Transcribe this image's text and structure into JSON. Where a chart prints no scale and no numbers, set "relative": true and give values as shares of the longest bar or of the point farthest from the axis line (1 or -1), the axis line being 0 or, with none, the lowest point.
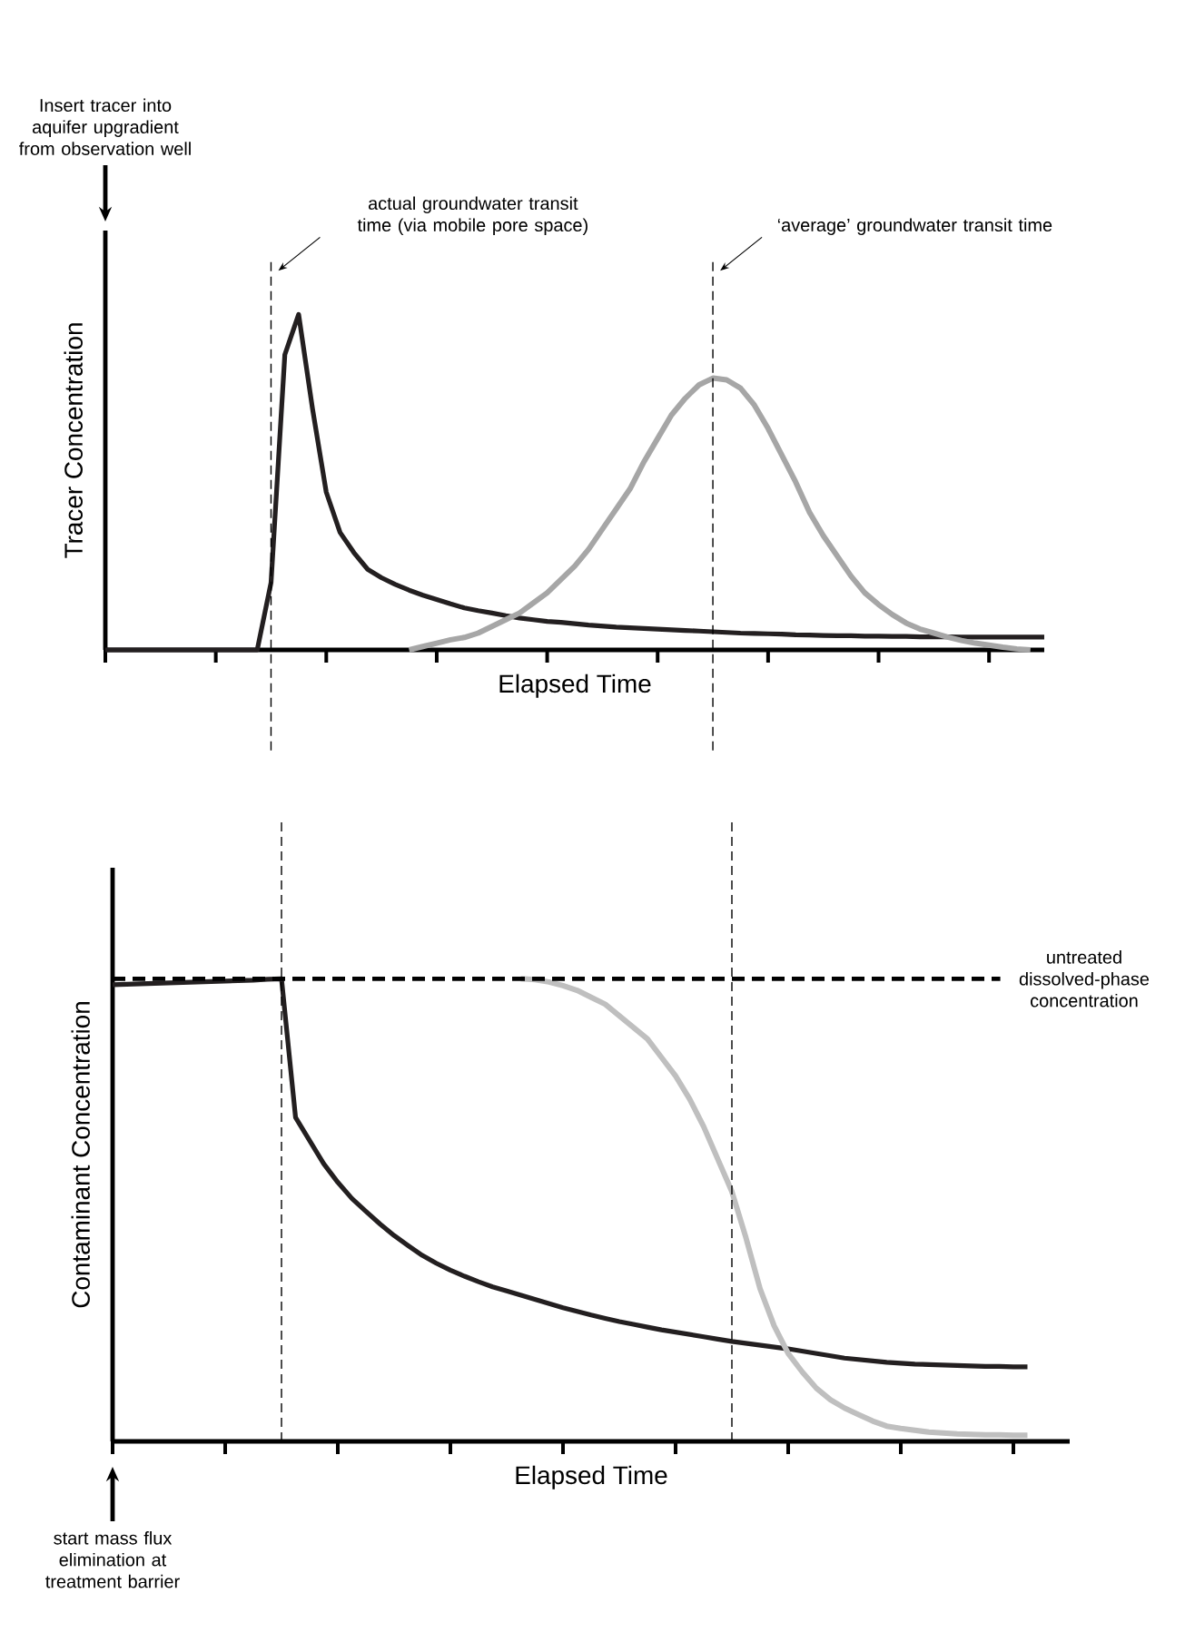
{
  "chart_data": [
    {
      "type": "line",
      "relative": true,
      "marker": "none",
      "xlabel": "Elapsed Time",
      "ylabel": "Tracer Concentration",
      "categories": [
        null,
        null,
        null,
        null,
        null,
        null,
        null,
        null,
        null,
        null,
        null,
        null,
        null,
        null,
        null,
        null,
        null,
        null,
        null,
        null,
        null,
        null,
        null,
        null,
        null,
        null,
        null,
        null,
        null,
        null,
        null,
        null,
        null,
        null,
        null,
        null,
        null,
        null,
        null,
        null,
        null,
        null,
        null,
        null,
        null,
        null,
        null,
        null,
        null,
        null,
        null,
        null,
        null,
        null,
        null,
        null,
        null,
        null,
        null,
        null,
        null,
        null,
        null,
        null,
        null,
        null,
        null,
        null,
        null
      ],
      "series": [
        {
          "color": "#231f20",
          "values": [
            0,
            0,
            0,
            0,
            0,
            0,
            0,
            0,
            0,
            0,
            0,
            0,
            0.2,
            0.88,
            1.0,
            0.72,
            0.47,
            0.35,
            0.29,
            0.24,
            0.215,
            0.195,
            0.178,
            0.163,
            0.15,
            0.137,
            0.125,
            0.117,
            0.11,
            0.102,
            0.095,
            0.09,
            0.085,
            0.082,
            0.078,
            0.074,
            0.071,
            0.068,
            0.066,
            0.064,
            0.062,
            0.06,
            0.058,
            0.056,
            0.054,
            0.052,
            0.05,
            0.049,
            0.048,
            0.047,
            0.045,
            0.044,
            0.043,
            0.042,
            0.042,
            0.041,
            0.041,
            0.04,
            0.04,
            0.039,
            0.039,
            0.039,
            0.038,
            0.038,
            0.038,
            0.038,
            0.038,
            0.038,
            0.038
          ]
        },
        {
          "color": "#a6a6a6",
          "values": [
            null,
            null,
            null,
            null,
            null,
            null,
            null,
            null,
            null,
            null,
            null,
            null,
            null,
            null,
            null,
            null,
            null,
            null,
            null,
            null,
            null,
            null,
            0,
            0.01,
            0.02,
            0.03,
            0.037,
            0.05,
            0.07,
            0.09,
            0.11,
            0.14,
            0.17,
            0.21,
            0.25,
            0.3,
            0.36,
            0.42,
            0.48,
            0.56,
            0.63,
            0.7,
            0.75,
            0.79,
            0.81,
            0.805,
            0.78,
            0.73,
            0.66,
            0.58,
            0.5,
            0.41,
            0.34,
            0.28,
            0.22,
            0.17,
            0.135,
            0.105,
            0.08,
            0.062,
            0.05,
            0.038,
            0.028,
            0.02,
            0.014,
            0.008,
            0.003,
            0,
            null
          ]
        }
      ],
      "annotations": [
        "Insert tracer into aquifer upgradient from observation well",
        "actual groundwater transit time (via mobile pore space)",
        "‘average’ groundwater transit time"
      ]
    },
    {
      "type": "line",
      "relative": true,
      "marker": "none",
      "xlabel": "Elapsed Time",
      "ylabel": "Contaminant Concentration",
      "categories": [
        null,
        null,
        null,
        null,
        null,
        null,
        null,
        null,
        null,
        null,
        null,
        null,
        null,
        null,
        null,
        null,
        null,
        null,
        null,
        null,
        null,
        null,
        null,
        null,
        null,
        null,
        null,
        null,
        null,
        null,
        null,
        null,
        null,
        null,
        null,
        null,
        null,
        null,
        null,
        null,
        null,
        null,
        null,
        null,
        null,
        null,
        null,
        null,
        null,
        null,
        null,
        null,
        null,
        null,
        null,
        null,
        null,
        null,
        null,
        null,
        null,
        null,
        null,
        null,
        null,
        null,
        null,
        null,
        null
      ],
      "series": [
        {
          "color": "#231f20",
          "values": [
            0.987,
            0.988,
            0.989,
            0.99,
            0.991,
            0.992,
            0.993,
            0.994,
            0.995,
            0.996,
            0.997,
            0.999,
            1.0,
            0.7,
            0.65,
            0.6,
            0.56,
            0.525,
            0.497,
            0.47,
            0.445,
            0.423,
            0.402,
            0.385,
            0.37,
            0.357,
            0.345,
            0.334,
            0.325,
            0.316,
            0.307,
            0.298,
            0.289,
            0.281,
            0.273,
            0.266,
            0.259,
            0.253,
            0.247,
            0.241,
            0.236,
            0.231,
            0.226,
            0.221,
            0.216,
            0.212,
            0.208,
            0.204,
            0.2,
            0.195,
            0.19,
            0.185,
            0.18,
            0.177,
            0.174,
            0.171,
            0.169,
            0.167,
            0.166,
            0.165,
            0.164,
            0.163,
            0.162,
            0.162,
            0.161,
            0.161,
            null,
            null,
            null
          ]
        },
        {
          "color": "#bfbfbf",
          "values": [
            null,
            null,
            null,
            null,
            null,
            null,
            null,
            null,
            null,
            null,
            null,
            null,
            null,
            null,
            null,
            null,
            null,
            null,
            null,
            null,
            null,
            null,
            null,
            null,
            null,
            null,
            null,
            null,
            null,
            1.0,
            0.998,
            0.993,
            0.985,
            0.975,
            0.96,
            0.945,
            0.92,
            0.895,
            0.87,
            0.83,
            0.79,
            0.74,
            0.68,
            0.61,
            0.54,
            0.44,
            0.33,
            0.25,
            0.19,
            0.15,
            0.115,
            0.09,
            0.072,
            0.058,
            0.044,
            0.033,
            0.028,
            0.024,
            0.02,
            0.018,
            0.016,
            0.015,
            0.014,
            0.014,
            0.013,
            0.013,
            null,
            null,
            null
          ]
        }
      ],
      "ref_lines": [
        {
          "axis": "y",
          "value": 1,
          "line_style": "dashed",
          "label": "untreated dissolved-phase concentration"
        }
      ],
      "annotations": [
        "start mass flux elimination at treatment barrier"
      ]
    }
  ]
}
